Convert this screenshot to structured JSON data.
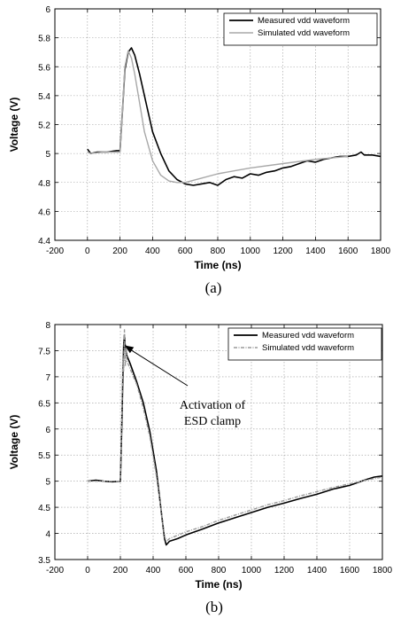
{
  "chart_data": [
    {
      "type": "line",
      "caption": "(a)",
      "xlabel": "Time (ns)",
      "ylabel": "Voltage (V)",
      "xlim": [
        -200,
        1800
      ],
      "ylim": [
        4.4,
        6
      ],
      "xticks": [
        -200,
        0,
        200,
        400,
        600,
        800,
        1000,
        1200,
        1400,
        1600,
        1800
      ],
      "yticks": [
        4.4,
        4.6,
        4.8,
        5,
        5.2,
        5.4,
        5.6,
        5.8,
        6
      ],
      "xtick_labels": [
        "-200",
        "0",
        "200",
        "400",
        "600",
        "800",
        "1000",
        "1200",
        "1400",
        "1600",
        "1800"
      ],
      "ytick_labels": [
        "4.4",
        "4.6",
        "4.8",
        "5",
        "5.2",
        "5.4",
        "5.6",
        "5.8",
        "6"
      ],
      "grid": true,
      "legend_position": "top-right",
      "series": [
        {
          "name": "Measured vdd waveform",
          "color": "#000000",
          "x": [
            0,
            20,
            60,
            120,
            180,
            200,
            215,
            230,
            250,
            270,
            290,
            320,
            360,
            400,
            450,
            500,
            550,
            600,
            650,
            700,
            750,
            800,
            850,
            900,
            950,
            1000,
            1050,
            1100,
            1150,
            1200,
            1250,
            1300,
            1350,
            1400,
            1450,
            1500,
            1550,
            1600,
            1650,
            1680,
            1700,
            1750,
            1800
          ],
          "y": [
            5.03,
            5.0,
            5.01,
            5.01,
            5.02,
            5.02,
            5.3,
            5.58,
            5.7,
            5.73,
            5.68,
            5.55,
            5.35,
            5.15,
            5.0,
            4.88,
            4.82,
            4.79,
            4.78,
            4.79,
            4.8,
            4.78,
            4.82,
            4.84,
            4.83,
            4.86,
            4.85,
            4.87,
            4.88,
            4.9,
            4.91,
            4.93,
            4.95,
            4.94,
            4.96,
            4.97,
            4.98,
            4.98,
            4.99,
            5.01,
            4.99,
            4.99,
            4.98
          ]
        },
        {
          "name": "Simulated vdd waveform",
          "color": "#a8a8a8",
          "x": [
            0,
            20,
            100,
            200,
            215,
            230,
            250,
            270,
            290,
            320,
            350,
            400,
            450,
            500,
            550,
            600,
            700,
            800,
            900,
            1000,
            1200,
            1400,
            1600
          ],
          "y": [
            5.01,
            5.0,
            5.01,
            5.01,
            5.3,
            5.6,
            5.71,
            5.66,
            5.55,
            5.35,
            5.15,
            4.95,
            4.85,
            4.81,
            4.8,
            4.8,
            4.83,
            4.86,
            4.88,
            4.9,
            4.93,
            4.96,
            4.98
          ]
        }
      ]
    },
    {
      "type": "line",
      "caption": "(b)",
      "xlabel": "Time (ns)",
      "ylabel": "Voltage (V)",
      "xlim": [
        -200,
        1800
      ],
      "ylim": [
        3.5,
        8
      ],
      "xticks": [
        -200,
        0,
        200,
        400,
        600,
        800,
        1000,
        1200,
        1400,
        1600,
        1800
      ],
      "yticks": [
        3.5,
        4,
        4.5,
        5,
        5.5,
        6,
        6.5,
        7,
        7.5,
        8
      ],
      "xtick_labels": [
        "-200",
        "0",
        "200",
        "400",
        "600",
        "800",
        "1000",
        "1200",
        "1400",
        "1600",
        "1800"
      ],
      "ytick_labels": [
        "3.5",
        "4",
        "4.5",
        "5",
        "5.5",
        "6",
        "6.5",
        "7",
        "7.5",
        "8"
      ],
      "grid": true,
      "legend_position": "top-right",
      "annotation": {
        "text_lines": [
          "Activation of",
          "ESD clamp"
        ],
        "arrow_to": [
          225,
          7.6
        ]
      },
      "series": [
        {
          "name": "Measured vdd waveform",
          "color": "#000000",
          "x": [
            0,
            50,
            100,
            150,
            200,
            210,
            215,
            220,
            225,
            230,
            240,
            260,
            300,
            340,
            380,
            420,
            450,
            470,
            480,
            500,
            550,
            600,
            700,
            800,
            900,
            1000,
            1100,
            1200,
            1300,
            1400,
            1500,
            1600,
            1700,
            1750,
            1800
          ],
          "y": [
            5.0,
            5.02,
            5.0,
            4.99,
            5.0,
            6.2,
            7.0,
            7.6,
            7.8,
            7.55,
            7.4,
            7.25,
            6.9,
            6.5,
            5.95,
            5.2,
            4.4,
            3.9,
            3.78,
            3.85,
            3.9,
            3.97,
            4.08,
            4.2,
            4.3,
            4.4,
            4.5,
            4.58,
            4.67,
            4.75,
            4.85,
            4.92,
            5.03,
            5.08,
            5.1
          ]
        },
        {
          "name": "Simulated vdd waveform",
          "color": "#9a9a9a",
          "x": [
            0,
            100,
            200,
            210,
            215,
            220,
            225,
            230,
            235,
            240,
            260,
            300,
            340,
            380,
            420,
            450,
            470,
            480,
            500,
            600,
            700,
            800,
            900,
            1000,
            1100,
            1200,
            1300,
            1400,
            1500,
            1600,
            1700,
            1800
          ],
          "y": [
            5.0,
            5.0,
            5.0,
            6.4,
            7.4,
            7.1,
            7.9,
            7.2,
            7.6,
            7.3,
            7.15,
            6.85,
            6.4,
            5.85,
            5.1,
            4.4,
            3.95,
            3.85,
            3.9,
            4.03,
            4.13,
            4.25,
            4.35,
            4.45,
            4.55,
            4.63,
            4.72,
            4.8,
            4.88,
            4.95,
            5.02,
            5.08
          ]
        }
      ]
    }
  ]
}
